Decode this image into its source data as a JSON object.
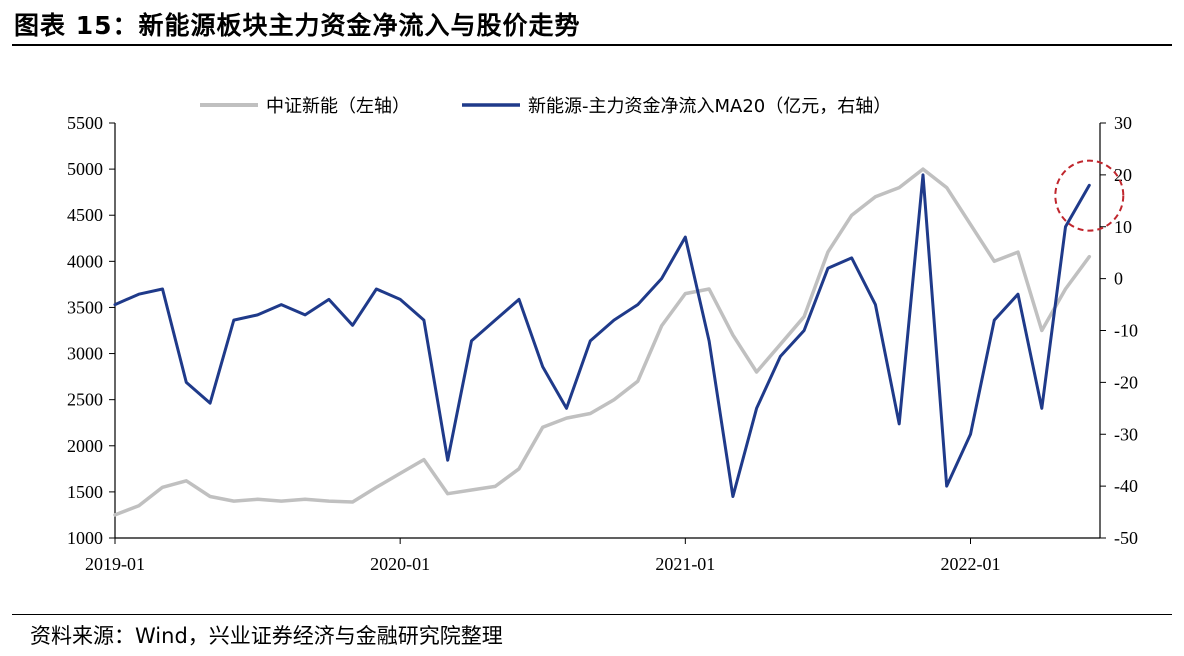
{
  "title": "图表 15：新能源板块主力资金净流入与股价走势",
  "source": "资料来源：Wind，兴业证券经济与金融研究院整理",
  "chart_data": {
    "type": "line",
    "left_axis": {
      "min": 1000,
      "max": 5500,
      "ticks": [
        1000,
        1500,
        2000,
        2500,
        3000,
        3500,
        4000,
        4500,
        5000,
        5500
      ]
    },
    "right_axis": {
      "min": -50,
      "max": 30,
      "ticks": [
        -50,
        -40,
        -30,
        -20,
        -10,
        0,
        10,
        20,
        30
      ]
    },
    "x_ticks": [
      "2019-01",
      "2020-01",
      "2021-01",
      "2022-01"
    ],
    "x_range": [
      "2019-01",
      "2022-06"
    ],
    "legend_position": "top",
    "series": [
      {
        "name": "中证新能（左轴）",
        "axis": "left",
        "color": "#c0c0c0",
        "points": [
          [
            "2019-01",
            1250
          ],
          [
            "2019-02",
            1350
          ],
          [
            "2019-03",
            1550
          ],
          [
            "2019-04",
            1620
          ],
          [
            "2019-05",
            1450
          ],
          [
            "2019-06",
            1400
          ],
          [
            "2019-07",
            1420
          ],
          [
            "2019-08",
            1400
          ],
          [
            "2019-09",
            1420
          ],
          [
            "2019-10",
            1400
          ],
          [
            "2019-11",
            1390
          ],
          [
            "2019-12",
            1550
          ],
          [
            "2020-01",
            1700
          ],
          [
            "2020-02",
            1850
          ],
          [
            "2020-03",
            1480
          ],
          [
            "2020-04",
            1520
          ],
          [
            "2020-05",
            1560
          ],
          [
            "2020-06",
            1750
          ],
          [
            "2020-07",
            2200
          ],
          [
            "2020-08",
            2300
          ],
          [
            "2020-09",
            2350
          ],
          [
            "2020-10",
            2500
          ],
          [
            "2020-11",
            2700
          ],
          [
            "2020-12",
            3300
          ],
          [
            "2021-01",
            3650
          ],
          [
            "2021-02",
            3700
          ],
          [
            "2021-03",
            3200
          ],
          [
            "2021-04",
            2800
          ],
          [
            "2021-05",
            3100
          ],
          [
            "2021-06",
            3400
          ],
          [
            "2021-07",
            4100
          ],
          [
            "2021-08",
            4500
          ],
          [
            "2021-09",
            4700
          ],
          [
            "2021-10",
            4800
          ],
          [
            "2021-11",
            5000
          ],
          [
            "2021-12",
            4800
          ],
          [
            "2022-01",
            4400
          ],
          [
            "2022-02",
            4000
          ],
          [
            "2022-03",
            4100
          ],
          [
            "2022-04",
            3250
          ],
          [
            "2022-05",
            3700
          ],
          [
            "2022-06",
            4050
          ]
        ]
      },
      {
        "name": "新能源-主力资金净流入MA20（亿元，右轴）",
        "axis": "right",
        "color": "#1f3a8a",
        "points": [
          [
            "2019-01",
            -5
          ],
          [
            "2019-02",
            -3
          ],
          [
            "2019-03",
            -2
          ],
          [
            "2019-04",
            -20
          ],
          [
            "2019-05",
            -24
          ],
          [
            "2019-06",
            -8
          ],
          [
            "2019-07",
            -7
          ],
          [
            "2019-08",
            -5
          ],
          [
            "2019-09",
            -7
          ],
          [
            "2019-10",
            -4
          ],
          [
            "2019-11",
            -9
          ],
          [
            "2019-12",
            -2
          ],
          [
            "2020-01",
            -4
          ],
          [
            "2020-02",
            -8
          ],
          [
            "2020-03",
            -35
          ],
          [
            "2020-04",
            -12
          ],
          [
            "2020-05",
            -8
          ],
          [
            "2020-06",
            -4
          ],
          [
            "2020-07",
            -17
          ],
          [
            "2020-08",
            -25
          ],
          [
            "2020-09",
            -12
          ],
          [
            "2020-10",
            -8
          ],
          [
            "2020-11",
            -5
          ],
          [
            "2020-12",
            0
          ],
          [
            "2021-01",
            8
          ],
          [
            "2021-02",
            -12
          ],
          [
            "2021-03",
            -42
          ],
          [
            "2021-04",
            -25
          ],
          [
            "2021-05",
            -15
          ],
          [
            "2021-06",
            -10
          ],
          [
            "2021-07",
            2
          ],
          [
            "2021-08",
            4
          ],
          [
            "2021-09",
            -5
          ],
          [
            "2021-10",
            -28
          ],
          [
            "2021-11",
            20
          ],
          [
            "2021-12",
            -40
          ],
          [
            "2022-01",
            -30
          ],
          [
            "2022-02",
            -8
          ],
          [
            "2022-03",
            -3
          ],
          [
            "2022-04",
            -25
          ],
          [
            "2022-05",
            10
          ],
          [
            "2022-06",
            18
          ]
        ]
      }
    ],
    "annotations": [
      {
        "type": "dashed-circle",
        "color": "#c0262d",
        "x": "2022-06",
        "y": 16,
        "axis": "right"
      }
    ]
  }
}
